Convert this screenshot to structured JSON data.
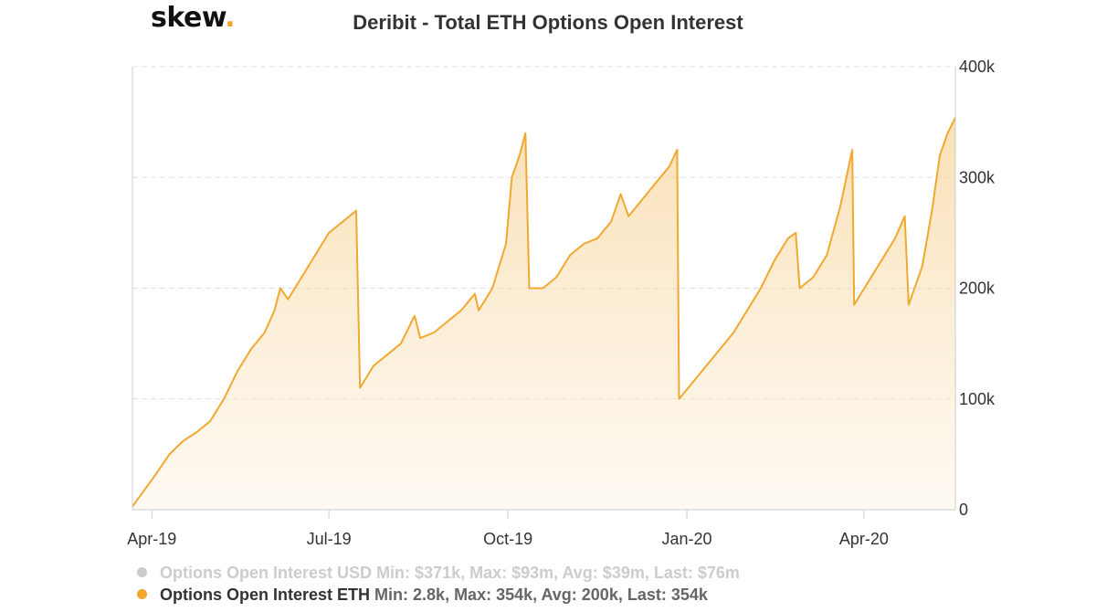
{
  "logo": {
    "text": "skew",
    "dot": "."
  },
  "chart_data": {
    "type": "area",
    "title": "Deribit - Total ETH Options Open Interest",
    "xlabel": "",
    "ylabel": "",
    "x_ticks": [
      "Apr-19",
      "Jul-19",
      "Oct-19",
      "Jan-20",
      "Apr-20"
    ],
    "y_ticks": [
      "0",
      "100k",
      "200k",
      "300k",
      "400k"
    ],
    "ylim": [
      0,
      400000
    ],
    "y_axis_side": "right",
    "grid": "horizontal-dashed",
    "series": [
      {
        "name": "Options Open Interest ETH",
        "stats": "Min: 2.8k, Max: 354k, Avg: 200k, Last: 354k",
        "color": "#f0a830",
        "visible": true,
        "points": [
          [
            "2019-03-22",
            2800
          ],
          [
            "2019-03-27",
            15000
          ],
          [
            "2019-04-03",
            32000
          ],
          [
            "2019-04-10",
            50000
          ],
          [
            "2019-04-17",
            62000
          ],
          [
            "2019-04-24",
            70000
          ],
          [
            "2019-05-01",
            80000
          ],
          [
            "2019-05-08",
            100000
          ],
          [
            "2019-05-15",
            125000
          ],
          [
            "2019-05-22",
            145000
          ],
          [
            "2019-05-29",
            160000
          ],
          [
            "2019-06-03",
            180000
          ],
          [
            "2019-06-06",
            200000
          ],
          [
            "2019-06-10",
            190000
          ],
          [
            "2019-06-17",
            210000
          ],
          [
            "2019-06-24",
            230000
          ],
          [
            "2019-07-01",
            250000
          ],
          [
            "2019-07-08",
            260000
          ],
          [
            "2019-07-15",
            270000
          ],
          [
            "2019-07-17",
            110000
          ],
          [
            "2019-07-24",
            130000
          ],
          [
            "2019-07-31",
            140000
          ],
          [
            "2019-08-07",
            150000
          ],
          [
            "2019-08-14",
            175000
          ],
          [
            "2019-08-17",
            155000
          ],
          [
            "2019-08-24",
            160000
          ],
          [
            "2019-08-31",
            170000
          ],
          [
            "2019-09-07",
            180000
          ],
          [
            "2019-09-14",
            195000
          ],
          [
            "2019-09-16",
            180000
          ],
          [
            "2019-09-23",
            200000
          ],
          [
            "2019-09-30",
            240000
          ],
          [
            "2019-10-03",
            300000
          ],
          [
            "2019-10-07",
            320000
          ],
          [
            "2019-10-10",
            340000
          ],
          [
            "2019-10-12",
            200000
          ],
          [
            "2019-10-19",
            200000
          ],
          [
            "2019-10-26",
            210000
          ],
          [
            "2019-11-02",
            230000
          ],
          [
            "2019-11-09",
            240000
          ],
          [
            "2019-11-16",
            245000
          ],
          [
            "2019-11-23",
            260000
          ],
          [
            "2019-11-28",
            285000
          ],
          [
            "2019-12-02",
            265000
          ],
          [
            "2019-12-09",
            280000
          ],
          [
            "2019-12-16",
            295000
          ],
          [
            "2019-12-23",
            310000
          ],
          [
            "2019-12-27",
            325000
          ],
          [
            "2019-12-28",
            100000
          ],
          [
            "2020-01-04",
            115000
          ],
          [
            "2020-01-11",
            130000
          ],
          [
            "2020-01-18",
            145000
          ],
          [
            "2020-01-25",
            160000
          ],
          [
            "2020-02-01",
            180000
          ],
          [
            "2020-02-08",
            200000
          ],
          [
            "2020-02-15",
            225000
          ],
          [
            "2020-02-22",
            245000
          ],
          [
            "2020-02-26",
            250000
          ],
          [
            "2020-02-28",
            200000
          ],
          [
            "2020-03-06",
            210000
          ],
          [
            "2020-03-13",
            230000
          ],
          [
            "2020-03-20",
            275000
          ],
          [
            "2020-03-26",
            325000
          ],
          [
            "2020-03-27",
            185000
          ],
          [
            "2020-04-03",
            205000
          ],
          [
            "2020-04-10",
            225000
          ],
          [
            "2020-04-17",
            245000
          ],
          [
            "2020-04-22",
            265000
          ],
          [
            "2020-04-24",
            185000
          ],
          [
            "2020-05-01",
            220000
          ],
          [
            "2020-05-06",
            270000
          ],
          [
            "2020-05-10",
            320000
          ],
          [
            "2020-05-14",
            340000
          ],
          [
            "2020-05-18",
            354000
          ]
        ]
      },
      {
        "name": "Options Open Interest USD",
        "stats": "Min: $371k, Max: $93m, Avg: $39m, Last: $76m",
        "color": "#cccccc",
        "visible": false
      }
    ]
  },
  "colors": {
    "line": "#f0a830",
    "fill_top": "#f5c77a",
    "fill_bottom": "#fdf3e3",
    "grid": "#e0e0e0",
    "axis": "#cccccc",
    "logo_dot": "#f5a623"
  }
}
